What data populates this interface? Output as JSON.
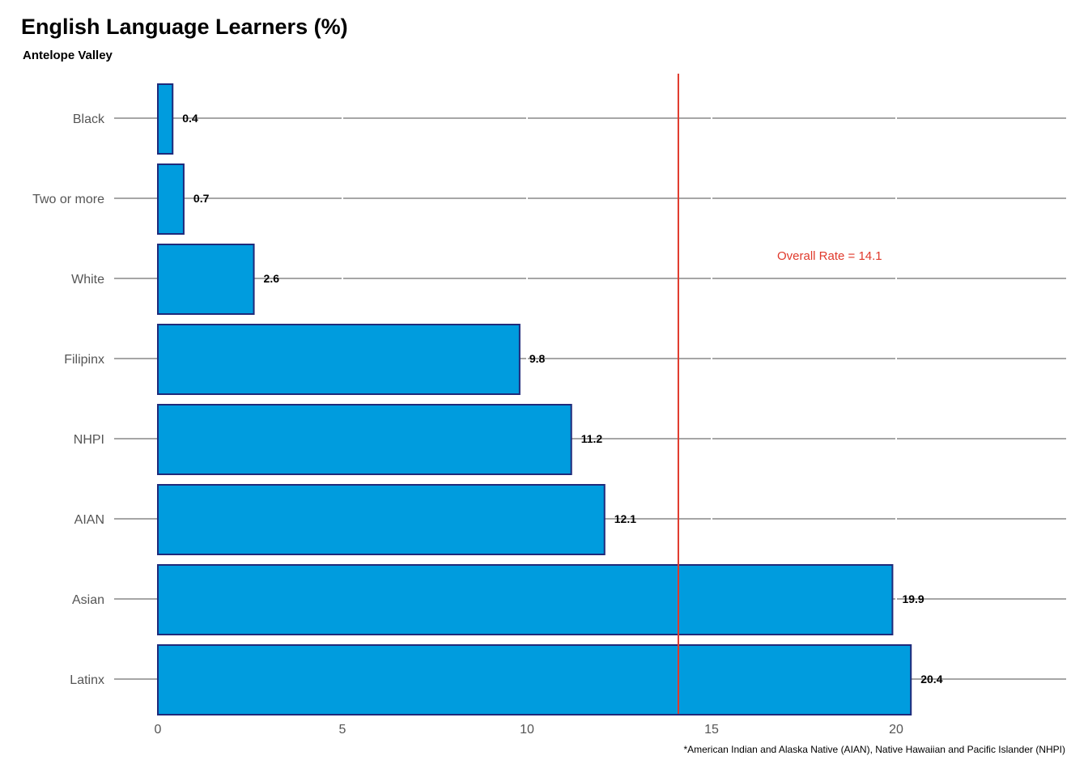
{
  "chart_data": {
    "type": "bar",
    "orientation": "horizontal",
    "title": "English Language Learners (%)",
    "subtitle": "Antelope Valley",
    "categories": [
      "Black",
      "Two or more",
      "White",
      "Filipinx",
      "NHPI",
      "AIAN",
      "Asian",
      "Latinx"
    ],
    "values": [
      0.4,
      0.7,
      2.6,
      9.8,
      11.2,
      12.1,
      19.9,
      20.4
    ],
    "value_labels": [
      "0.4",
      "0.7",
      "2.6",
      "9.8",
      "11.2",
      "12.1",
      "19.9",
      "20.4"
    ],
    "xlim": [
      0,
      24.6
    ],
    "x_ticks": [
      0,
      5,
      10,
      15,
      20
    ],
    "grid": true,
    "reference_line": {
      "value": 14.1,
      "label": "Overall Rate = 14.1",
      "color": "#e0392b"
    },
    "bar_fill": "#009cde",
    "bar_stroke": "#1f2a7a",
    "footnote": "*American Indian and Alaska Native (AIAN), Native Hawaiian and Pacific Islander (NHPI)"
  }
}
